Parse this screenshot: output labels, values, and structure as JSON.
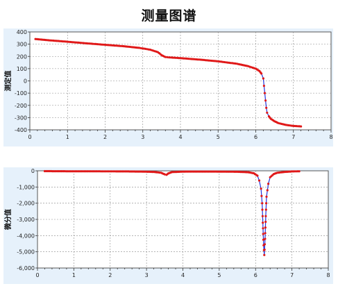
{
  "title": "测量图谱",
  "chart_data": [
    {
      "type": "scatter",
      "title": "",
      "xlabel": "",
      "ylabel": "测定值",
      "xlim": [
        0,
        8
      ],
      "ylim": [
        -400,
        400
      ],
      "xticks": [
        0,
        1,
        2,
        3,
        4,
        5,
        6,
        7,
        8
      ],
      "yticks": [
        400,
        300,
        200,
        100,
        0,
        -100,
        -200,
        -300,
        -400
      ],
      "ytick_labels": [
        "400",
        "300",
        "200",
        "100",
        "0",
        "-100",
        "-200",
        "-300",
        "-400"
      ],
      "grid": true,
      "series": [
        {
          "color": "#e01818",
          "line_color": "#2233dd",
          "x": [
            0.15,
            0.5,
            1.0,
            1.5,
            2.0,
            2.5,
            2.9,
            3.2,
            3.4,
            3.5,
            3.6,
            3.7,
            4.0,
            4.5,
            5.0,
            5.5,
            5.8,
            6.0,
            6.1,
            6.15,
            6.2,
            6.22,
            6.24,
            6.26,
            6.28,
            6.3,
            6.35,
            6.4,
            6.5,
            6.6,
            6.8,
            7.0,
            7.2
          ],
          "y": [
            342,
            332,
            320,
            307,
            295,
            283,
            270,
            255,
            235,
            210,
            195,
            192,
            186,
            174,
            160,
            140,
            120,
            100,
            80,
            60,
            20,
            -40,
            -100,
            -160,
            -220,
            -260,
            -290,
            -310,
            -330,
            -345,
            -360,
            -368,
            -372
          ]
        }
      ]
    },
    {
      "type": "scatter",
      "title": "",
      "xlabel": "",
      "ylabel": "微分值",
      "xlim": [
        0,
        8
      ],
      "ylim": [
        -6000,
        0
      ],
      "xticks": [
        0,
        1,
        2,
        3,
        4,
        5,
        6,
        7,
        8
      ],
      "yticks": [
        0,
        -1000,
        -2000,
        -3000,
        -4000,
        -5000,
        -6000
      ],
      "ytick_labels": [
        "0",
        "-1,000",
        "-2,000",
        "-3,000",
        "-4,000",
        "-5,000",
        "-6,000"
      ],
      "grid": true,
      "series": [
        {
          "color": "#e01818",
          "line_color": "#2233dd",
          "x": [
            0.2,
            0.5,
            1.0,
            1.5,
            2.0,
            2.5,
            2.9,
            3.2,
            3.4,
            3.5,
            3.55,
            3.6,
            3.7,
            4.0,
            4.5,
            5.0,
            5.5,
            5.8,
            5.95,
            6.05,
            6.1,
            6.15,
            6.18,
            6.2,
            6.22,
            6.24,
            6.26,
            6.28,
            6.3,
            6.35,
            6.4,
            6.5,
            6.6,
            6.8,
            7.0,
            7.2
          ],
          "y": [
            -20,
            -25,
            -30,
            -30,
            -35,
            -40,
            -50,
            -70,
            -120,
            -220,
            -250,
            -160,
            -80,
            -50,
            -45,
            -50,
            -60,
            -90,
            -150,
            -300,
            -600,
            -1100,
            -2000,
            -3200,
            -4600,
            -5200,
            -4200,
            -2800,
            -1600,
            -800,
            -400,
            -200,
            -120,
            -70,
            -40,
            -30
          ]
        }
      ]
    }
  ]
}
